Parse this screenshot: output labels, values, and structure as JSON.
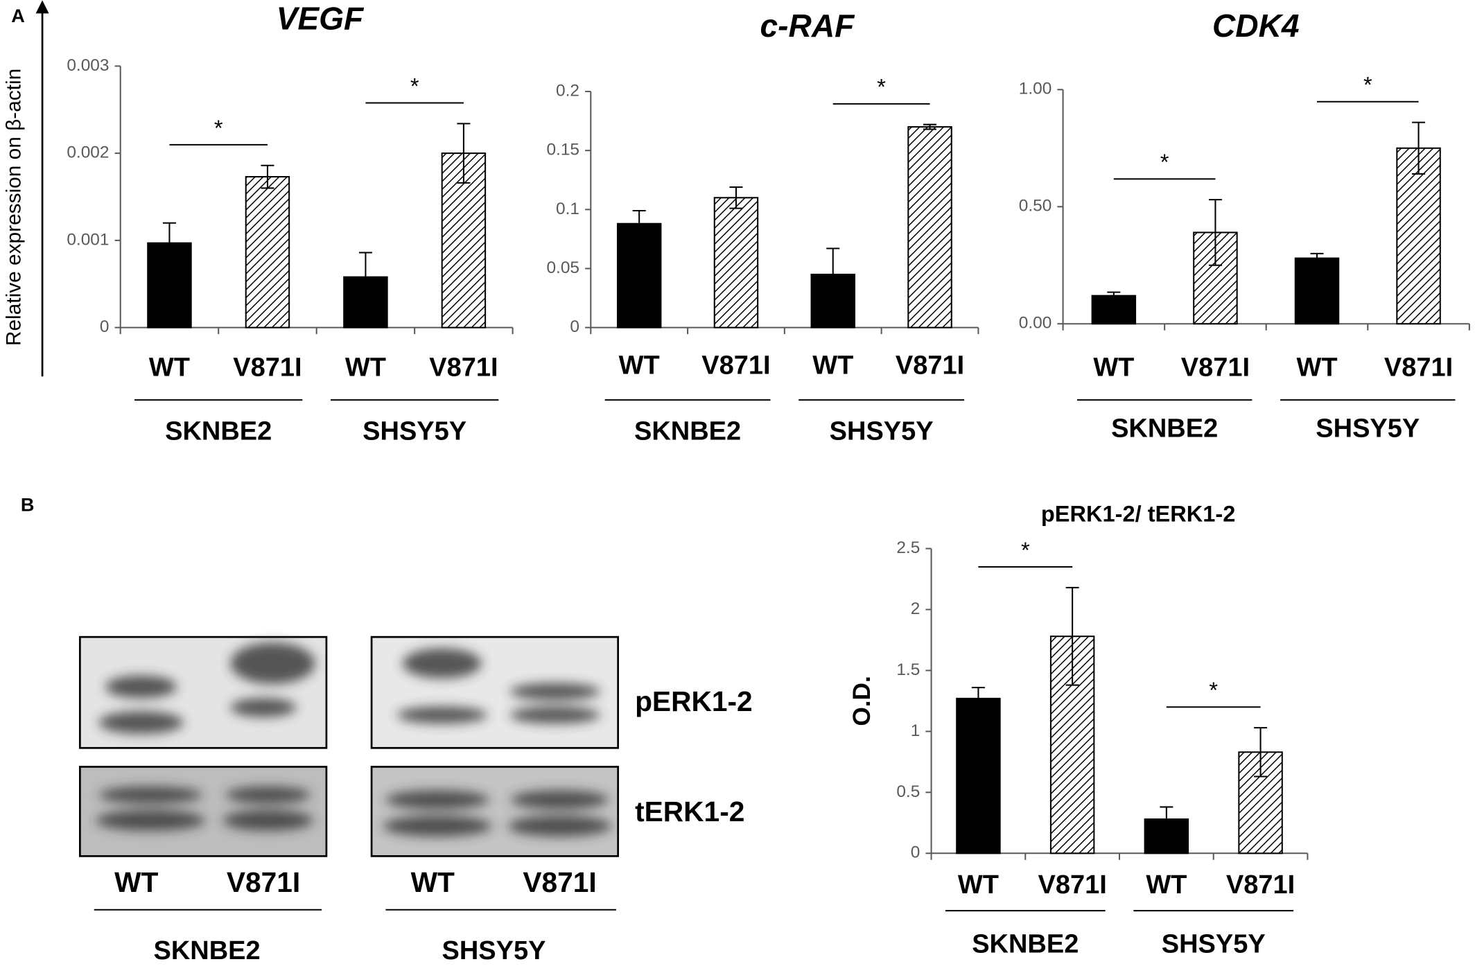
{
  "panel_labels": [
    "A",
    "B"
  ],
  "shared_ylabel": "Relative expression on β-actin",
  "chart_data": [
    {
      "type": "bar",
      "title": "VEGF",
      "categories": [
        "WT",
        "V871I",
        "WT",
        "V871I"
      ],
      "groups": [
        "SKNBE2",
        "SHSY5Y"
      ],
      "values": [
        0.00097,
        0.00173,
        0.00058,
        0.002
      ],
      "errors": [
        0.00023,
        0.00013,
        0.00028,
        0.00034
      ],
      "color": "#000000",
      "bar_styles": [
        "solid",
        "hatched",
        "solid",
        "hatched"
      ],
      "ylim": [
        0,
        0.003
      ],
      "yticks": [
        0,
        0.001,
        0.002,
        0.003
      ],
      "grid": false,
      "annotations": [
        {
          "text": "*",
          "group": "SKNBE2"
        },
        {
          "text": "*",
          "group": "SHSY5Y"
        }
      ]
    },
    {
      "type": "bar",
      "title": "c-RAF",
      "categories": [
        "WT",
        "V871I",
        "WT",
        "V871I"
      ],
      "groups": [
        "SKNBE2",
        "SHSY5Y"
      ],
      "values": [
        0.088,
        0.11,
        0.045,
        0.17
      ],
      "errors": [
        0.011,
        0.009,
        0.022,
        0.002
      ],
      "color": "#000000",
      "bar_styles": [
        "solid",
        "hatched",
        "solid",
        "hatched"
      ],
      "ylim": [
        0,
        0.2
      ],
      "yticks": [
        0,
        0.05,
        0.1,
        0.15,
        0.2
      ],
      "grid": false,
      "annotations": [
        {
          "text": "*",
          "group": "SHSY5Y"
        }
      ]
    },
    {
      "type": "bar",
      "title": "CDK4",
      "categories": [
        "WT",
        "V871I",
        "WT",
        "V871I"
      ],
      "groups": [
        "SKNBE2",
        "SHSY5Y"
      ],
      "values": [
        0.12,
        0.39,
        0.28,
        0.75
      ],
      "errors": [
        0.015,
        0.14,
        0.02,
        0.11
      ],
      "color": "#000000",
      "bar_styles": [
        "solid",
        "hatched",
        "solid",
        "hatched"
      ],
      "ylim": [
        0,
        1
      ],
      "yticks": [
        {
          "value": 0,
          "label": "0.00"
        },
        {
          "value": 0.5,
          "label": "0.50"
        },
        {
          "value": 1,
          "label": "1.00"
        }
      ],
      "grid": false,
      "annotations": [
        {
          "text": "*",
          "group": "SKNBE2"
        },
        {
          "text": "*",
          "group": "SHSY5Y"
        }
      ]
    },
    {
      "type": "bar",
      "title": "pERK1-2/ tERK1-2",
      "ylabel": "O.D.",
      "categories": [
        "WT",
        "V871I",
        "WT",
        "V871I"
      ],
      "groups": [
        "SKNBE2",
        "SHSY5Y"
      ],
      "values": [
        1.27,
        1.78,
        0.28,
        0.83
      ],
      "errors": [
        0.09,
        0.4,
        0.1,
        0.2
      ],
      "color": "#000000",
      "bar_styles": [
        "solid",
        "hatched",
        "solid",
        "hatched"
      ],
      "ylim": [
        0,
        2.5
      ],
      "yticks": [
        0,
        0.5,
        1,
        1.5,
        2,
        2.5
      ],
      "grid": false,
      "annotations": [
        {
          "text": "*",
          "group": "SKNBE2"
        },
        {
          "text": "*",
          "group": "SHSY5Y"
        }
      ]
    }
  ],
  "blot": {
    "bands": [
      "pERK1-2",
      "tERK1-2"
    ],
    "lanes": [
      "WT",
      "V871I",
      "WT",
      "V871I"
    ],
    "groups": [
      "SKNBE2",
      "SHSY5Y"
    ]
  }
}
